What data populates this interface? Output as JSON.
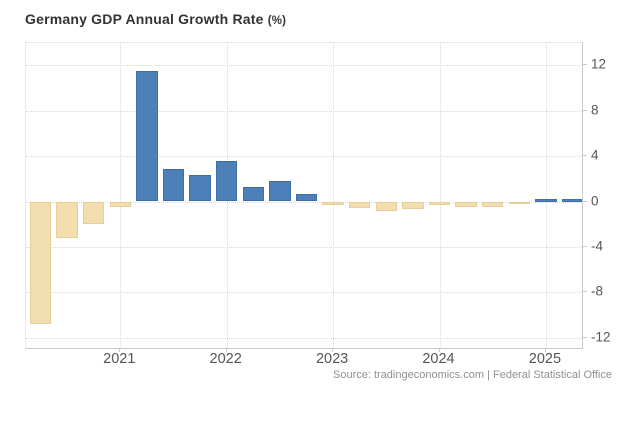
{
  "header": {
    "title_main": "Germany GDP Annual Growth Rate",
    "title_unit": "(%)"
  },
  "footer": {
    "source": "Source: tradingeconomics.com | Federal Statistical Office"
  },
  "colors": {
    "positive_bar": "#4d7fb9",
    "positive_bar_border": "#3d6ea8",
    "negative_bar": "#f1ddad",
    "negative_bar_border": "#e7cf9a",
    "grid": "#d9d9d9",
    "axis": "#c9c9c9",
    "label": "#555555",
    "title": "#333333",
    "source": "#909090"
  },
  "chart_data": {
    "type": "bar",
    "title": "Germany GDP Annual Growth Rate (%)",
    "xlabel": "",
    "ylabel": "%",
    "x": [
      "2020-Q2",
      "2020-Q3",
      "2020-Q4",
      "2021-Q1",
      "2021-Q2",
      "2021-Q3",
      "2021-Q4",
      "2022-Q1",
      "2022-Q2",
      "2022-Q3",
      "2022-Q4",
      "2023-Q1",
      "2023-Q2",
      "2023-Q3",
      "2023-Q4",
      "2024-Q1",
      "2024-Q2",
      "2024-Q3",
      "2024-Q4",
      "2025-Q1",
      "2025-Q2"
    ],
    "values": [
      -10.8,
      -3.2,
      -2.0,
      -0.5,
      11.5,
      2.9,
      2.3,
      3.6,
      1.3,
      1.8,
      0.7,
      -0.3,
      -0.6,
      -0.8,
      -0.7,
      -0.3,
      -0.5,
      -0.5,
      -0.2,
      0.2,
      0.2
    ],
    "yticks": [
      12,
      8,
      4,
      0,
      -4,
      -8,
      -12
    ],
    "ylim": [
      -13,
      14
    ],
    "year_labels": [
      "2021",
      "2022",
      "2023",
      "2024",
      "2025"
    ],
    "grid": true,
    "legend": false,
    "bar_color_rule": "blue = positive values, tan = negative values"
  }
}
